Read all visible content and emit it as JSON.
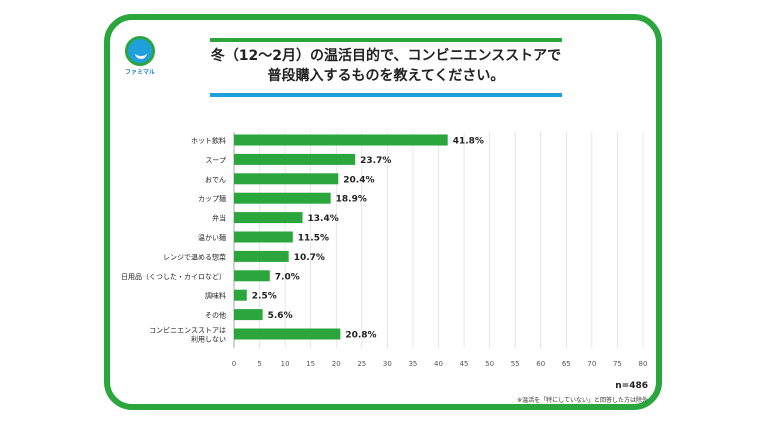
{
  "brand": {
    "logo_text": "ファミマル"
  },
  "title_line1": "冬（12～2月）の温活目的で、コンビニエンスストアで",
  "title_line2": "普段購入するものを教えてください。",
  "sample_size": "n=486",
  "footnote": "※温活を「特にしていない」と回答した方は除外",
  "colors": {
    "bar": "#2aa63d",
    "frame": "#2aa63d",
    "accent_blue": "#1fa0dc",
    "grid": "#d8d8d8"
  },
  "chart_data": {
    "type": "bar",
    "orientation": "horizontal",
    "categories": [
      [
        "ホット飲料"
      ],
      [
        "スープ"
      ],
      [
        "おでん"
      ],
      [
        "カップ麺"
      ],
      [
        "弁当"
      ],
      [
        "温かい麺"
      ],
      [
        "レンジで温める惣菜"
      ],
      [
        "日用品（くつした・カイロなど）"
      ],
      [
        "調味料"
      ],
      [
        "その他"
      ],
      [
        "コンビニエンスストアは",
        "利用しない"
      ]
    ],
    "values": [
      41.8,
      23.7,
      20.4,
      18.9,
      13.4,
      11.5,
      10.7,
      7.0,
      2.5,
      5.6,
      20.8
    ],
    "value_labels": [
      "41.8%",
      "23.7%",
      "20.4%",
      "18.9%",
      "13.4%",
      "11.5%",
      "10.7%",
      "7.0%",
      "2.5%",
      "5.6%",
      "20.8%"
    ],
    "xlim": [
      0,
      80
    ],
    "xticks": [
      "0",
      "5",
      "10",
      "15",
      "20",
      "25",
      "30",
      "35",
      "40",
      "45",
      "50",
      "55",
      "60",
      "65",
      "70",
      "75",
      "80"
    ],
    "grid": true,
    "unit": "%"
  }
}
